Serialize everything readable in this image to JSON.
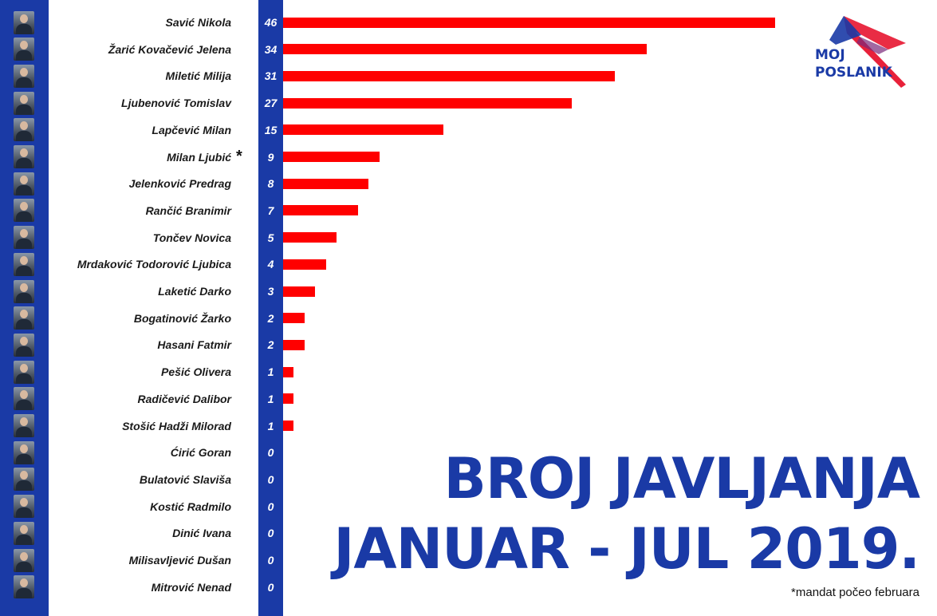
{
  "chart_data": {
    "type": "bar",
    "orientation": "horizontal",
    "title_lines": [
      "BROJ JAVLJANJA",
      "JANUAR - JUL 2019."
    ],
    "footnote": "*mandat počeo februara",
    "categories": [
      "Savić Nikola",
      "Žarić Kovačević Jelena",
      "Miletić Milija",
      "Ljubenović Tomislav",
      "Lapčević Milan",
      "Milan Ljubić",
      "Jelenković Predrag",
      "Rančić Branimir",
      "Tončev Novica",
      "Mrdaković Todorović Ljubica",
      "Laketić Darko",
      "Bogatinović Žarko",
      "Hasani Fatmir",
      "Pešić Olivera",
      "Radičević Dalibor",
      "Stošić Hadži Milorad",
      "Ćirić Goran",
      "Bulatović Slaviša",
      "Kostić Radmilo",
      "Dinić Ivana",
      "Milisavljević Dušan",
      "Mitrović Nenad"
    ],
    "values": [
      46,
      34,
      31,
      27,
      15,
      9,
      8,
      7,
      5,
      4,
      3,
      2,
      2,
      1,
      1,
      1,
      0,
      0,
      0,
      0,
      0,
      0
    ],
    "annotations": [
      {
        "category": "Milan Ljubić",
        "marker": "*"
      }
    ],
    "bar_color": "#ff0000",
    "accent_color": "#1a3aa6",
    "legend": "none",
    "grid": false
  },
  "logo": {
    "line1": "MOJ",
    "line2": "POSLANIK",
    "name": "moj-poslanik-logo"
  }
}
